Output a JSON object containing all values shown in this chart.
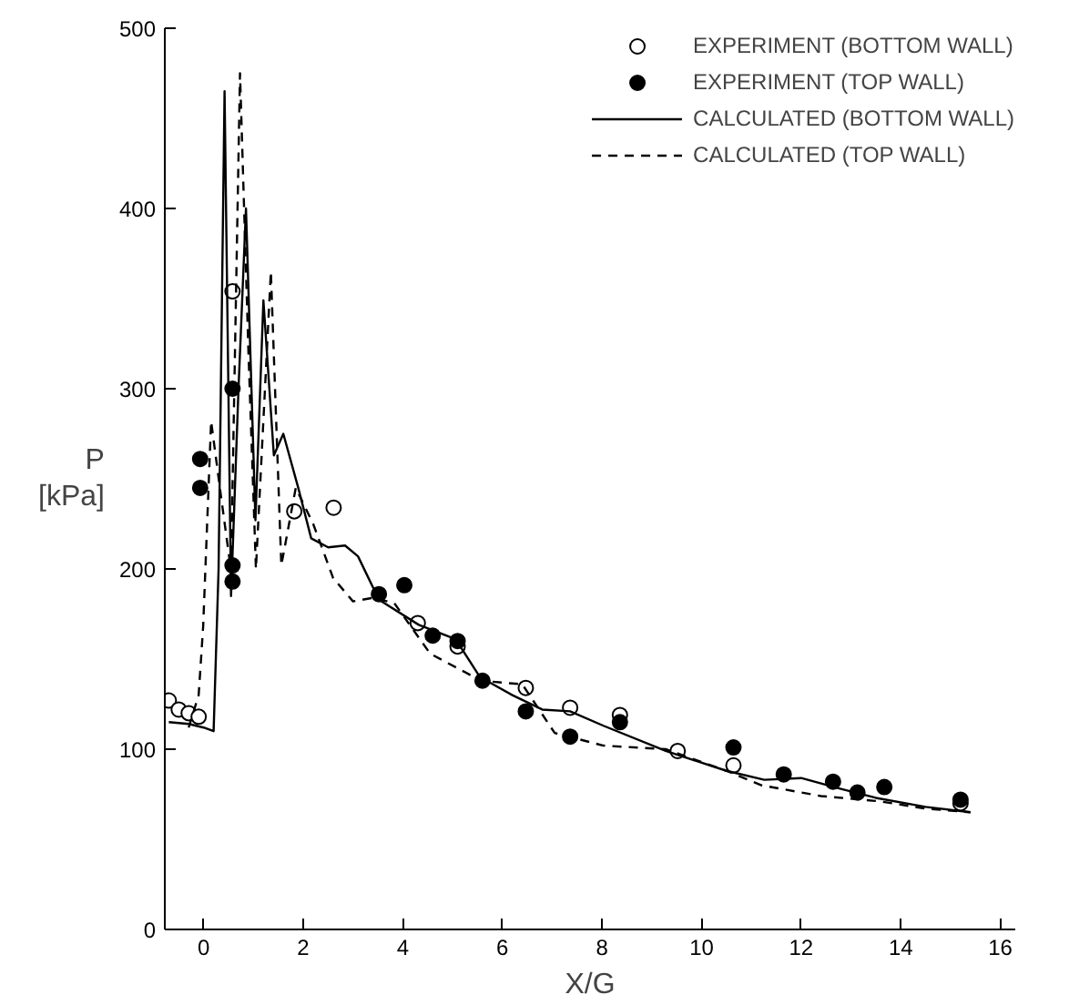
{
  "chart_data": {
    "type": "scatter",
    "xlabel": "X/G",
    "ylabel": "P [kPa]",
    "xlim": [
      -0.78,
      16.3
    ],
    "ylim": [
      0,
      500
    ],
    "xticks": [
      0,
      2,
      4,
      6,
      8,
      10,
      12,
      14,
      16
    ],
    "yticks": [
      0,
      100,
      200,
      300,
      400,
      500
    ],
    "grid": false,
    "legend": "top right",
    "series": [
      {
        "name": "EXPERIMENT (BOTTOM WALL)",
        "marker": "circle_open",
        "color": "#000000",
        "x": [
          -0.7,
          -0.5,
          -0.3,
          -0.1,
          0.58,
          1.82,
          2.61,
          4.3,
          5.1,
          6.47,
          7.36,
          8.36,
          9.52,
          10.64,
          15.2
        ],
        "values": [
          127,
          122,
          120,
          118,
          354,
          232,
          234,
          170,
          157,
          134,
          123,
          119,
          99,
          91,
          70
        ]
      },
      {
        "name": "EXPERIMENT (TOP WALL)",
        "marker": "circle",
        "color": "#000000",
        "x": [
          -0.07,
          -0.07,
          0.58,
          0.58,
          0.58,
          3.52,
          4.03,
          4.6,
          5.1,
          5.6,
          6.47,
          7.36,
          8.36,
          10.64,
          11.65,
          12.64,
          13.13,
          13.67,
          15.2
        ],
        "values": [
          261,
          245,
          300,
          202,
          193,
          186,
          191,
          163,
          160,
          138,
          121,
          107,
          115,
          101,
          86,
          82,
          76,
          79,
          72
        ]
      },
      {
        "name": "CALCULATED (BOTTOM WALL)",
        "type": "line",
        "line_style": "solid",
        "color": "#000000",
        "x": [
          -0.7,
          -0.3,
          0.0,
          0.2,
          0.3,
          0.42,
          0.55,
          0.7,
          0.85,
          1.04,
          1.2,
          1.41,
          1.6,
          1.9,
          2.16,
          2.5,
          2.84,
          3.1,
          3.52,
          4.32,
          5.06,
          5.55,
          6.2,
          6.8,
          7.36,
          8.03,
          9.28,
          10.5,
          11.26,
          12.0,
          12.8,
          13.5,
          14.5,
          15.4
        ],
        "values": [
          115,
          114,
          112,
          110,
          200,
          465,
          185,
          300,
          400,
          227,
          349,
          263,
          275,
          245,
          217,
          212,
          213,
          207,
          183,
          169,
          161,
          140,
          130,
          122,
          121,
          113,
          99,
          88,
          83,
          84,
          78,
          73,
          68,
          65
        ]
      },
      {
        "name": "CALCULATED (TOP WALL)",
        "type": "line",
        "line_style": "dashed",
        "color": "#000000",
        "x": [
          -0.3,
          -0.1,
          -0.01,
          0.15,
          0.35,
          0.55,
          0.73,
          0.9,
          1.05,
          1.35,
          1.56,
          1.85,
          2.2,
          2.6,
          3.0,
          3.4,
          3.83,
          4.55,
          5.57,
          6.4,
          7.05,
          8.03,
          9.28,
          10.5,
          11.2,
          12.4,
          13.6,
          14.5,
          15.4
        ],
        "values": [
          112,
          130,
          168,
          282,
          240,
          199,
          475,
          320,
          200,
          365,
          202,
          245,
          225,
          195,
          182,
          184,
          181,
          153,
          138,
          136,
          109,
          102,
          100,
          88,
          80,
          74,
          71,
          67,
          65
        ]
      }
    ]
  }
}
